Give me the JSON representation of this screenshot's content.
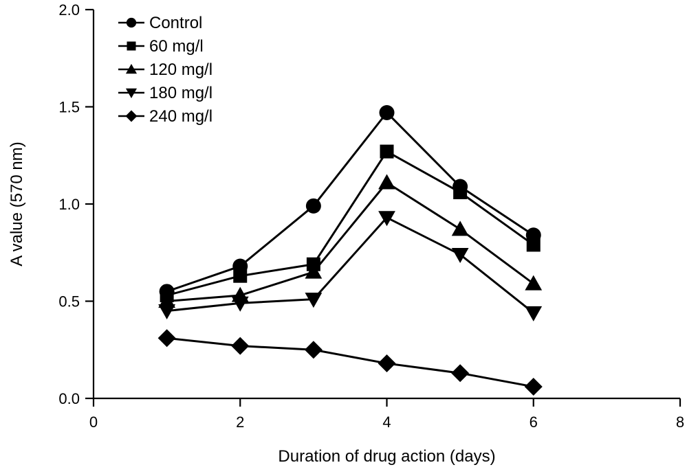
{
  "chart_data": {
    "type": "line",
    "title": "",
    "xlabel": "Duration of drug action (days)",
    "ylabel": "A value (570 nm)",
    "xlim": [
      0,
      8
    ],
    "ylim": [
      0,
      2.0
    ],
    "xticks": [
      "0",
      "2",
      "4",
      "6",
      "8"
    ],
    "yticks": [
      "0.0",
      "0.5",
      "1.0",
      "1.5",
      "2.0"
    ],
    "grid": false,
    "legend_position": "top-left",
    "x": [
      1,
      2,
      3,
      4,
      5,
      6
    ],
    "series": [
      {
        "name": "Control",
        "marker": "circle",
        "values": [
          0.55,
          0.68,
          0.99,
          1.47,
          1.09,
          0.84
        ]
      },
      {
        "name": "60 mg/l",
        "marker": "square",
        "values": [
          0.53,
          0.63,
          0.69,
          1.27,
          1.06,
          0.79
        ]
      },
      {
        "name": "120 mg/l",
        "marker": "triangle-up",
        "values": [
          0.5,
          0.53,
          0.65,
          1.11,
          0.87,
          0.59
        ]
      },
      {
        "name": "180 mg/l",
        "marker": "triangle-down",
        "values": [
          0.45,
          0.49,
          0.51,
          0.93,
          0.74,
          0.44
        ]
      },
      {
        "name": "240 mg/l",
        "marker": "diamond",
        "values": [
          0.31,
          0.27,
          0.25,
          0.18,
          0.13,
          0.06
        ]
      }
    ]
  }
}
